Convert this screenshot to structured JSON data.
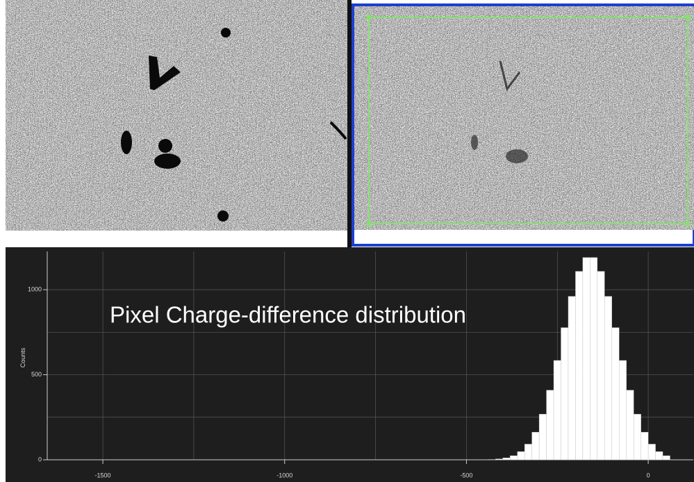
{
  "chart_data": {
    "type": "histogram",
    "annotation": "Pixel Charge-difference distribution",
    "ylabel": "Counts",
    "bins": [
      -440,
      -420,
      -400,
      -380,
      -360,
      -340,
      -320,
      -300,
      -280,
      -260,
      -240,
      -220,
      -200,
      -180,
      -160,
      -140,
      -120,
      -100,
      -80,
      -60,
      -40,
      -20,
      0,
      20,
      40,
      60
    ],
    "counts": [
      2,
      5,
      11,
      24,
      48,
      92,
      162,
      268,
      409,
      584,
      777,
      961,
      1108,
      1189,
      1189,
      1108,
      961,
      777,
      584,
      409,
      268,
      162,
      92,
      48,
      24
    ],
    "color": "#ffffff",
    "xlim": [
      -1653,
      124
    ],
    "ylim": [
      0,
      1225
    ],
    "xticks": [
      -1500,
      -1000,
      -500,
      0
    ],
    "yticks": [
      0,
      500,
      1000
    ],
    "xminorticks": [
      -1250,
      -750,
      -250
    ],
    "yminorticks": [
      250,
      750
    ],
    "grid": true
  }
}
